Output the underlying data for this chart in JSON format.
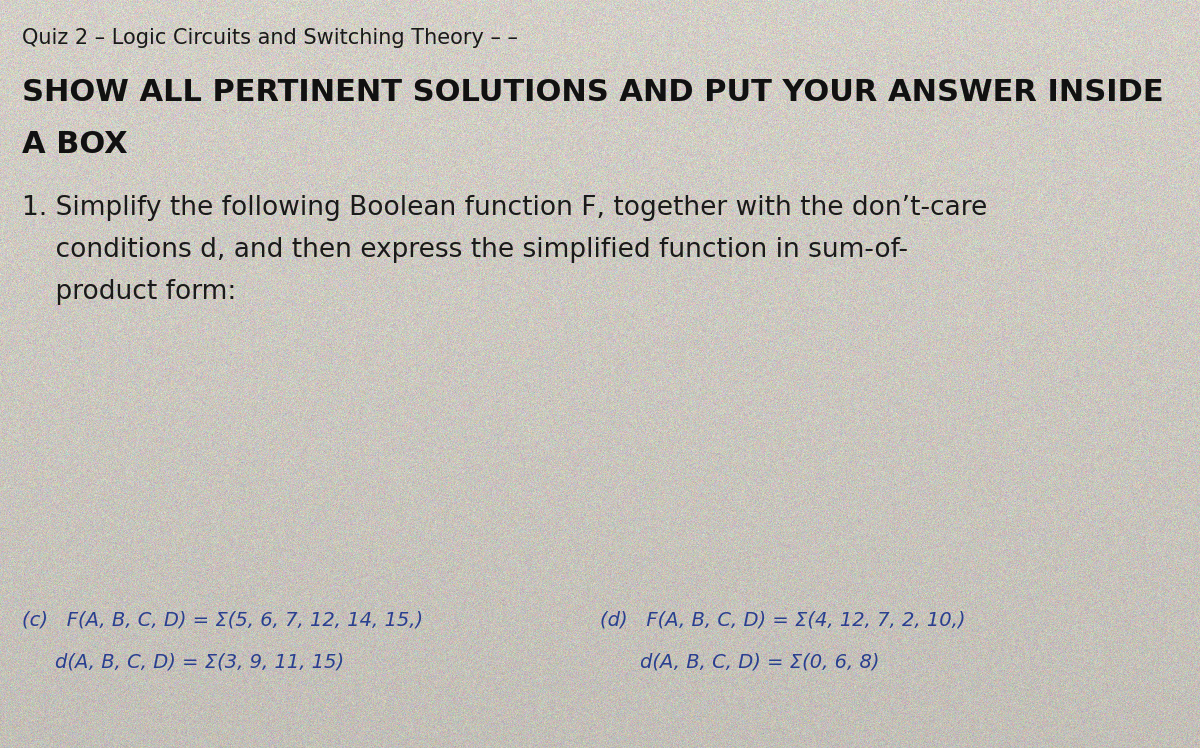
{
  "bg_color": "#c8c4bc",
  "bg_color_light": "#d4d0c8",
  "title_line": "Quiz 2 – Logic Circuits and Switching Theory – –",
  "title_fontsize": 15,
  "title_color": "#1a1a1a",
  "bold_line1": "SHOW ALL PERTINENT SOLUTIONS AND PUT YOUR ANSWER INSIDE",
  "bold_line2": "A BOX",
  "bold_fontsize": 22,
  "bold_color": "#111111",
  "question_number": "1.",
  "question_text_line1": " Simplify the following Boolean function F, together with the don’t-care",
  "question_text_line2": "    conditions d, and then express the simplified function in sum-of-",
  "question_text_line3": "    product form:",
  "question_fontsize": 19,
  "question_color": "#1a1a1a",
  "label_c": "(c)",
  "fc_text": "F(A, B, C, D) = Σ(5, 6, 7, 12, 14, 15,)",
  "dc_text": "d(A, B, C, D) = Σ(3, 9, 11, 15)",
  "label_d": "(d)",
  "fd_text": "F(A, B, C, D) = Σ(4, 12, 7, 2, 10,)",
  "dd_text": "d(A, B, C, D) = Σ(0, 6, 8)",
  "expr_fontsize": 14,
  "expr_color": "#2a3f8f"
}
